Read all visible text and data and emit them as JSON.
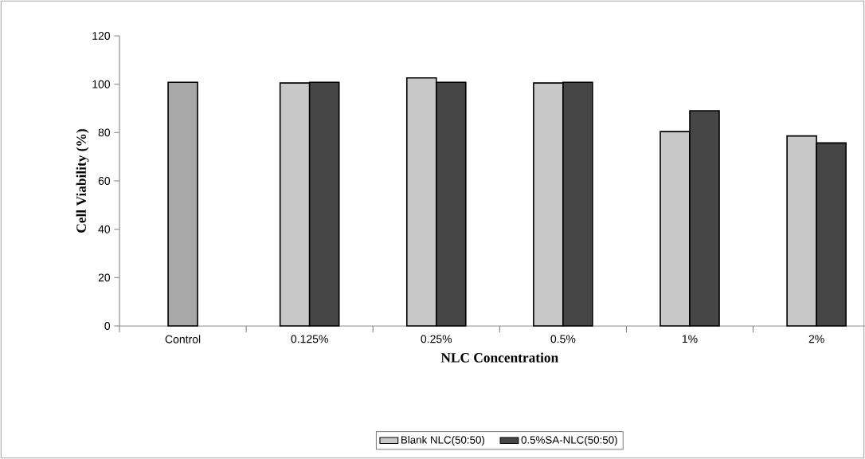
{
  "chart_data": {
    "type": "bar",
    "xlabel": "NLC Concentration",
    "ylabel": "Cell Viability (%)",
    "categories": [
      "Control",
      "0.125%",
      "0.25%",
      "0.5%",
      "1%",
      "2%"
    ],
    "series": [
      {
        "color": "#a8a8a8",
        "values": [
          100.8,
          null,
          null,
          null,
          null,
          null
        ]
      },
      {
        "name": "Blank NLC(50:50)",
        "color": "#c8c8c8",
        "values": [
          null,
          100.5,
          102.6,
          100.5,
          80.4,
          78.6
        ]
      },
      {
        "name": "0.5%SA-NLC(50:50)",
        "color": "#464646",
        "values": [
          null,
          100.8,
          100.8,
          100.8,
          89.0,
          75.7
        ]
      }
    ],
    "ylim": [
      0,
      120
    ],
    "yticks": [
      0,
      20,
      40,
      60,
      80,
      100,
      120
    ],
    "legend": "bottom"
  }
}
